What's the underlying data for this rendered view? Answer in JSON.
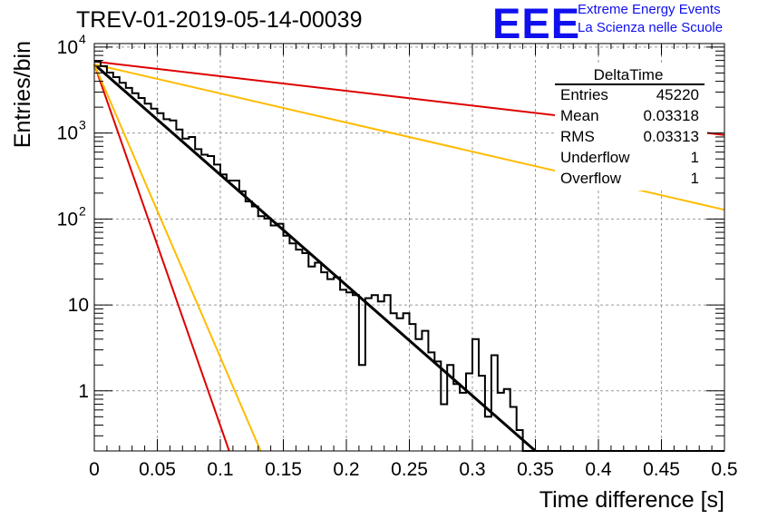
{
  "header": {
    "title": "TREV-01-2019-05-14-00039",
    "logo_text": "EEE",
    "logo_line1": "Extreme Energy Events",
    "logo_line2": "La Scienza nelle Scuole"
  },
  "stats_box": {
    "name": "DeltaTime",
    "rows": [
      {
        "label": "Entries",
        "value": "45220"
      },
      {
        "label": "Mean",
        "value": "0.03318"
      },
      {
        "label": "RMS",
        "value": "0.03313"
      },
      {
        "label": "Underflow",
        "value": "1"
      },
      {
        "label": "Overflow",
        "value": "1"
      }
    ]
  },
  "chart_data": {
    "type": "line",
    "xlabel": "Time difference [s]",
    "ylabel": "Entries/bin",
    "xlim": [
      0,
      0.5
    ],
    "ylim": [
      0.2,
      11000
    ],
    "yscale": "log",
    "grid": true,
    "x_ticks": [
      "0",
      "0.05",
      "0.1",
      "0.15",
      "0.2",
      "0.25",
      "0.3",
      "0.35",
      "0.4",
      "0.45",
      "0.5"
    ],
    "y_ticks": [
      {
        "value": 1,
        "label": "1"
      },
      {
        "value": 10,
        "label": "10"
      },
      {
        "value": 100,
        "label": "10",
        "exp": "2"
      },
      {
        "value": 1000,
        "label": "10",
        "exp": "3"
      },
      {
        "value": 10000,
        "label": "10",
        "exp": "4"
      }
    ],
    "colors": {
      "histogram": "#000000",
      "fit": "#000000",
      "red": "#dd0000",
      "orange": "#ffbb00"
    },
    "histogram": {
      "bin_width": 0.005,
      "counts": [
        6800,
        6000,
        5050,
        4480,
        3850,
        3350,
        2900,
        2560,
        2200,
        1920,
        1700,
        1450,
        1400,
        1100,
        860,
        900,
        650,
        560,
        540,
        430,
        330,
        280,
        280,
        210,
        160,
        140,
        108,
        101,
        84,
        88,
        64,
        52,
        44,
        40,
        28,
        31,
        24,
        20,
        21,
        15,
        14,
        13,
        2,
        12,
        13,
        11,
        13,
        8,
        7,
        8,
        6,
        4,
        5,
        2.8,
        2.2,
        0.7,
        2,
        1.2,
        0.95,
        1.6,
        4,
        1.5,
        0.5,
        2.6,
        0.95,
        1.05,
        0.65,
        0.35,
        0.2,
        0.2,
        0.2,
        0.2,
        0.2,
        0.2,
        0.2,
        0.2,
        0.2,
        0.2,
        0.2,
        0.2,
        0.2,
        0.2,
        0.2,
        0.2,
        0.2,
        0.2,
        0.2,
        0.2,
        0.2,
        0.2,
        0.2,
        0.2,
        0.2,
        0.2,
        0.2,
        0.2,
        0.2,
        0.2,
        0.2,
        0.2
      ]
    },
    "curves": [
      {
        "color": "#000000",
        "x": [
          0,
          0.35
        ],
        "y": [
          6300,
          0.2
        ]
      },
      {
        "color": "#dd0000",
        "x": [
          0,
          0.5
        ],
        "y": [
          6800,
          950
        ]
      },
      {
        "color": "#ffbb00",
        "x": [
          0,
          0.5
        ],
        "y": [
          6300,
          128
        ]
      },
      {
        "color": "#dd0000",
        "x": [
          0,
          0.107
        ],
        "y": [
          6300,
          0.2
        ]
      },
      {
        "color": "#ffbb00",
        "x": [
          0,
          0.132
        ],
        "y": [
          6300,
          0.2
        ]
      }
    ]
  }
}
